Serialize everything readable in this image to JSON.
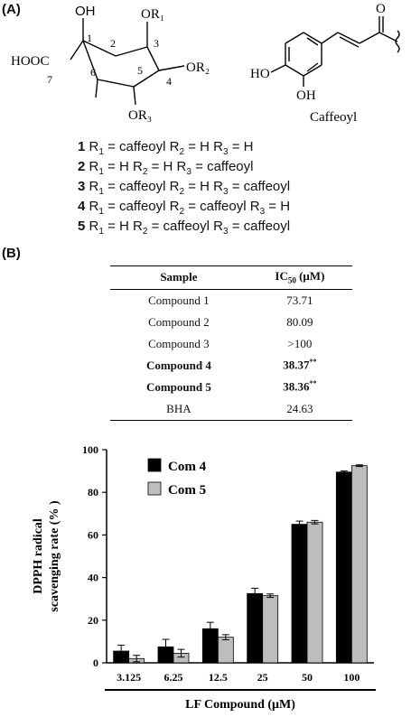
{
  "panel_a": {
    "label": "(A)",
    "structure_labels": {
      "oh_top": "OH",
      "or1": "OR₁",
      "hooc": "HOOC",
      "or2": "OR₂",
      "or3": "OR₃",
      "num1": "1",
      "num2": "2",
      "num3": "3",
      "num4": "4",
      "num5": "5",
      "num6": "6",
      "num7": "7",
      "caffeoyl_ho1": "HO",
      "caffeoyl_oh": "OH",
      "caffeoyl_o": "O",
      "caffeoyl_name": "Caffeoyl"
    },
    "compounds": [
      {
        "num": "1",
        "r1": "caffeoyl",
        "r2": "H",
        "r3": "H"
      },
      {
        "num": "2",
        "r1": "H",
        "r2": "H",
        "r3": "caffeoyl"
      },
      {
        "num": "3",
        "r1": "caffeoyl",
        "r2": "H",
        "r3": "caffeoyl"
      },
      {
        "num": "4",
        "r1": "caffeoyl",
        "r2": "caffeoyl",
        "r3": "H"
      },
      {
        "num": "5",
        "r1": "H",
        "r2": "caffeoyl",
        "r3": "caffeoyl"
      }
    ]
  },
  "panel_b": {
    "label": "(B)",
    "table": {
      "col_sample": "Sample",
      "col_ic50": "IC",
      "col_ic50_sub": "50",
      "col_ic50_unit": " (μM)",
      "rows": [
        {
          "sample": "Compound 1",
          "ic50": "73.71",
          "sig": ""
        },
        {
          "sample": "Compound 2",
          "ic50": "80.09",
          "sig": ""
        },
        {
          "sample": "Compound 3",
          "ic50": ">100",
          "sig": ""
        },
        {
          "sample": "Compound 4",
          "ic50": "38.37",
          "sig": "**"
        },
        {
          "sample": "Compound 5",
          "ic50": "38.36",
          "sig": "**"
        },
        {
          "sample": "BHA",
          "ic50": "24.63",
          "sig": ""
        }
      ]
    }
  },
  "chart_data": {
    "type": "bar",
    "title": "",
    "xlabel": "LF Compound (μM)",
    "ylabel_line1": "DPPH radical",
    "ylabel_line2": "scavenging rate (% )",
    "ylim": [
      0,
      100
    ],
    "yticks": [
      "0",
      "20",
      "40",
      "60",
      "80",
      "100"
    ],
    "categories": [
      "3.125",
      "6.25",
      "12.5",
      "25",
      "50",
      "100"
    ],
    "legend_position": "top-left",
    "grid": false,
    "series": [
      {
        "name": "Com 4",
        "color": "#000000",
        "values": [
          5.5,
          7.5,
          16,
          32.5,
          65,
          89.5
        ],
        "errors": [
          2.8,
          3.5,
          3.0,
          2.5,
          1.5,
          0.5
        ]
      },
      {
        "name": "Com 5",
        "color": "#bdbdbd",
        "values": [
          2,
          4.5,
          12,
          31.5,
          66,
          92.5
        ],
        "errors": [
          1.5,
          1.8,
          1.2,
          0.8,
          0.8,
          0.4
        ]
      }
    ]
  }
}
